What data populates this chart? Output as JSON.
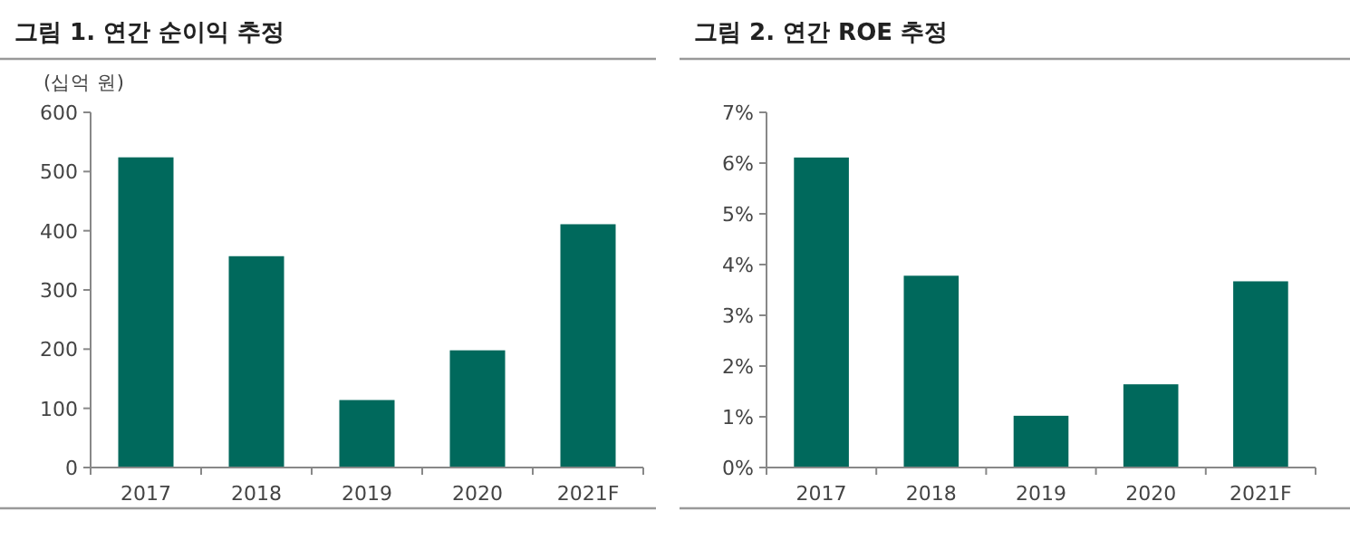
{
  "chart_data": [
    {
      "type": "bar",
      "title": "그림 1. 연간 순이익 추정",
      "ylabel": "(십억 원)",
      "categories": [
        "2017",
        "2018",
        "2019",
        "2020",
        "2021F"
      ],
      "values": [
        524,
        357,
        114,
        198,
        411
      ],
      "color": "#00695c",
      "ylim": [
        0,
        600
      ],
      "yticks": [
        0,
        100,
        200,
        300,
        400,
        500,
        600
      ]
    },
    {
      "type": "bar",
      "title": "그림 2. 연간 ROE 추정",
      "categories": [
        "2017",
        "2018",
        "2019",
        "2020",
        "2021F"
      ],
      "values": [
        6.11,
        3.78,
        1.02,
        1.64,
        3.67
      ],
      "color": "#00695c",
      "ylim": [
        0,
        7
      ],
      "yticks": [
        {
          "value": 0,
          "label": "0%"
        },
        {
          "value": 1,
          "label": "1%"
        },
        {
          "value": 2,
          "label": "2%"
        },
        {
          "value": 3,
          "label": "3%"
        },
        {
          "value": 4,
          "label": "4%"
        },
        {
          "value": 5,
          "label": "5%"
        },
        {
          "value": 6,
          "label": "6%"
        },
        {
          "value": 7,
          "label": "7%"
        }
      ]
    }
  ]
}
